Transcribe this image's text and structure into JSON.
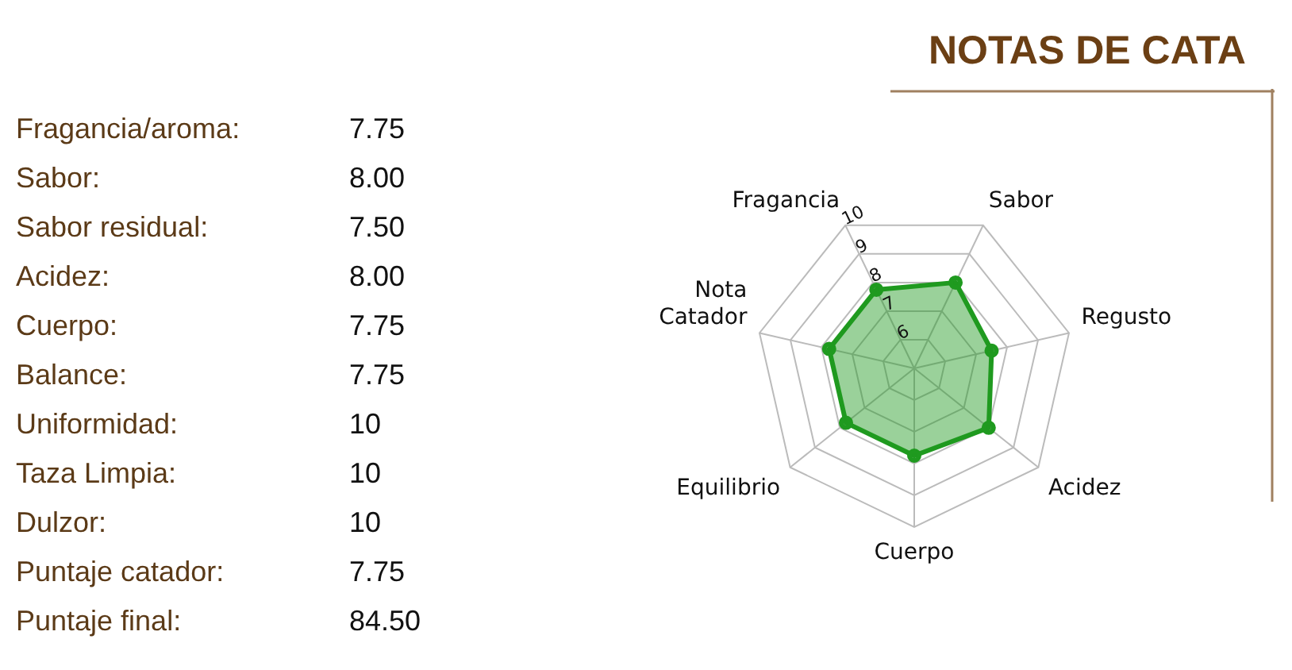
{
  "chart_data": [
    {
      "type": "other",
      "annotations": [
        "Fragancia/aroma:",
        "7.75",
        "Sabor:",
        "8.00",
        "Sabor residual:",
        "7.50",
        "Acidez:",
        "8.00",
        "Cuerpo:",
        "7.75",
        "Balance:",
        "7.75",
        "Uniformidad:",
        "10",
        "Taza Limpia:",
        "10",
        "Dulzor:",
        "10",
        "Puntaje catador:",
        "7.75",
        "Puntaje final:",
        "84.50"
      ]
    },
    {
      "type": "radar",
      "title": "NOTAS DE CATA",
      "categories": [
        "Fragancia",
        "Sabor",
        "Regusto",
        "Acidez",
        "Cuerpo",
        "Equilibrio",
        "Nota Catador"
      ],
      "series": [
        {
          "color": "#1f9a1f",
          "values": [
            7.75,
            8.0,
            7.5,
            8.0,
            7.75,
            7.75,
            7.75
          ]
        }
      ],
      "ylim": [
        5,
        10
      ],
      "yticks": [
        6,
        7,
        8,
        9,
        10
      ],
      "grid": true,
      "marker": "circle"
    }
  ]
}
